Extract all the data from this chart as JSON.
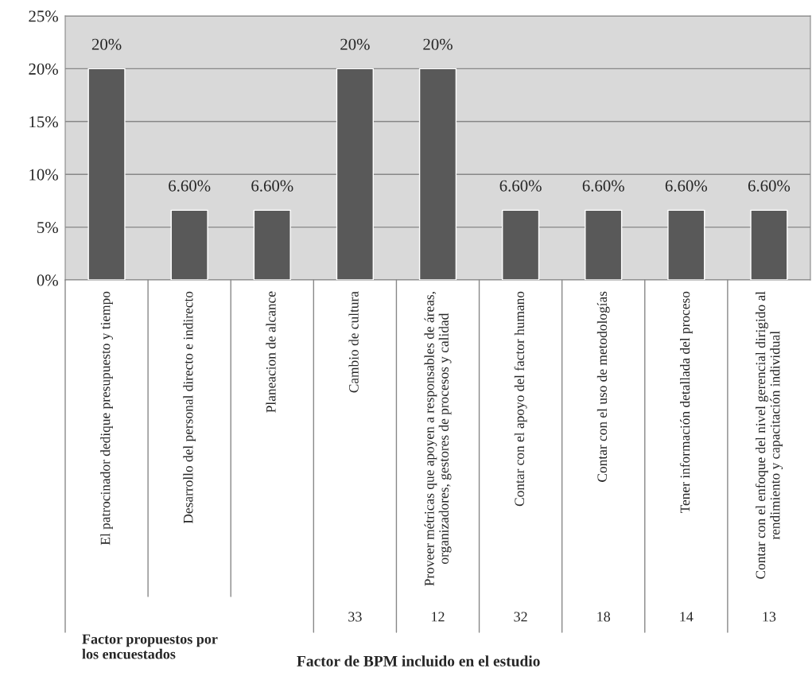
{
  "chart_data": {
    "type": "bar",
    "categories": [
      "El patrocinador dedique presupuesto y tiempo",
      "Desarrollo del personal directo e indirecto",
      "Planeacion de alcance",
      "Cambio de cultura",
      "Proveer métricas que apoyen a responsables de áreas, organizadores, gestores de procesos y calidad",
      "Contar con el apoyo del factor humano",
      "Contar con el uso de metodologías",
      "Tener información detallada del proceso",
      "Contar con el enfoque del nivel gerencial dirigido al rendimiento y capacitación individual"
    ],
    "series": [
      {
        "color": "#595959",
        "values": [
          20,
          6.6,
          6.6,
          20,
          20,
          6.6,
          6.6,
          6.6,
          6.6
        ]
      }
    ],
    "value_labels": [
      "20%",
      "6.60%",
      "6.60%",
      "20%",
      "20%",
      "6.60%",
      "6.60%",
      "6.60%",
      "6.60%"
    ],
    "ylim": [
      0,
      25
    ],
    "yticks": [
      {
        "value": 0,
        "label": "0%"
      },
      {
        "value": 5,
        "label": "5%"
      },
      {
        "value": 10,
        "label": "10%"
      },
      {
        "value": 15,
        "label": "15%"
      },
      {
        "value": 20,
        "label": "20%"
      },
      {
        "value": 25,
        "label": "25%"
      }
    ],
    "grid": "y",
    "legend": false,
    "annotations": [
      "33",
      "12",
      "32",
      "18",
      "14",
      "13",
      "Factor propuestos por los encuestados",
      "Factor de BPM incluido en el estudio"
    ]
  }
}
